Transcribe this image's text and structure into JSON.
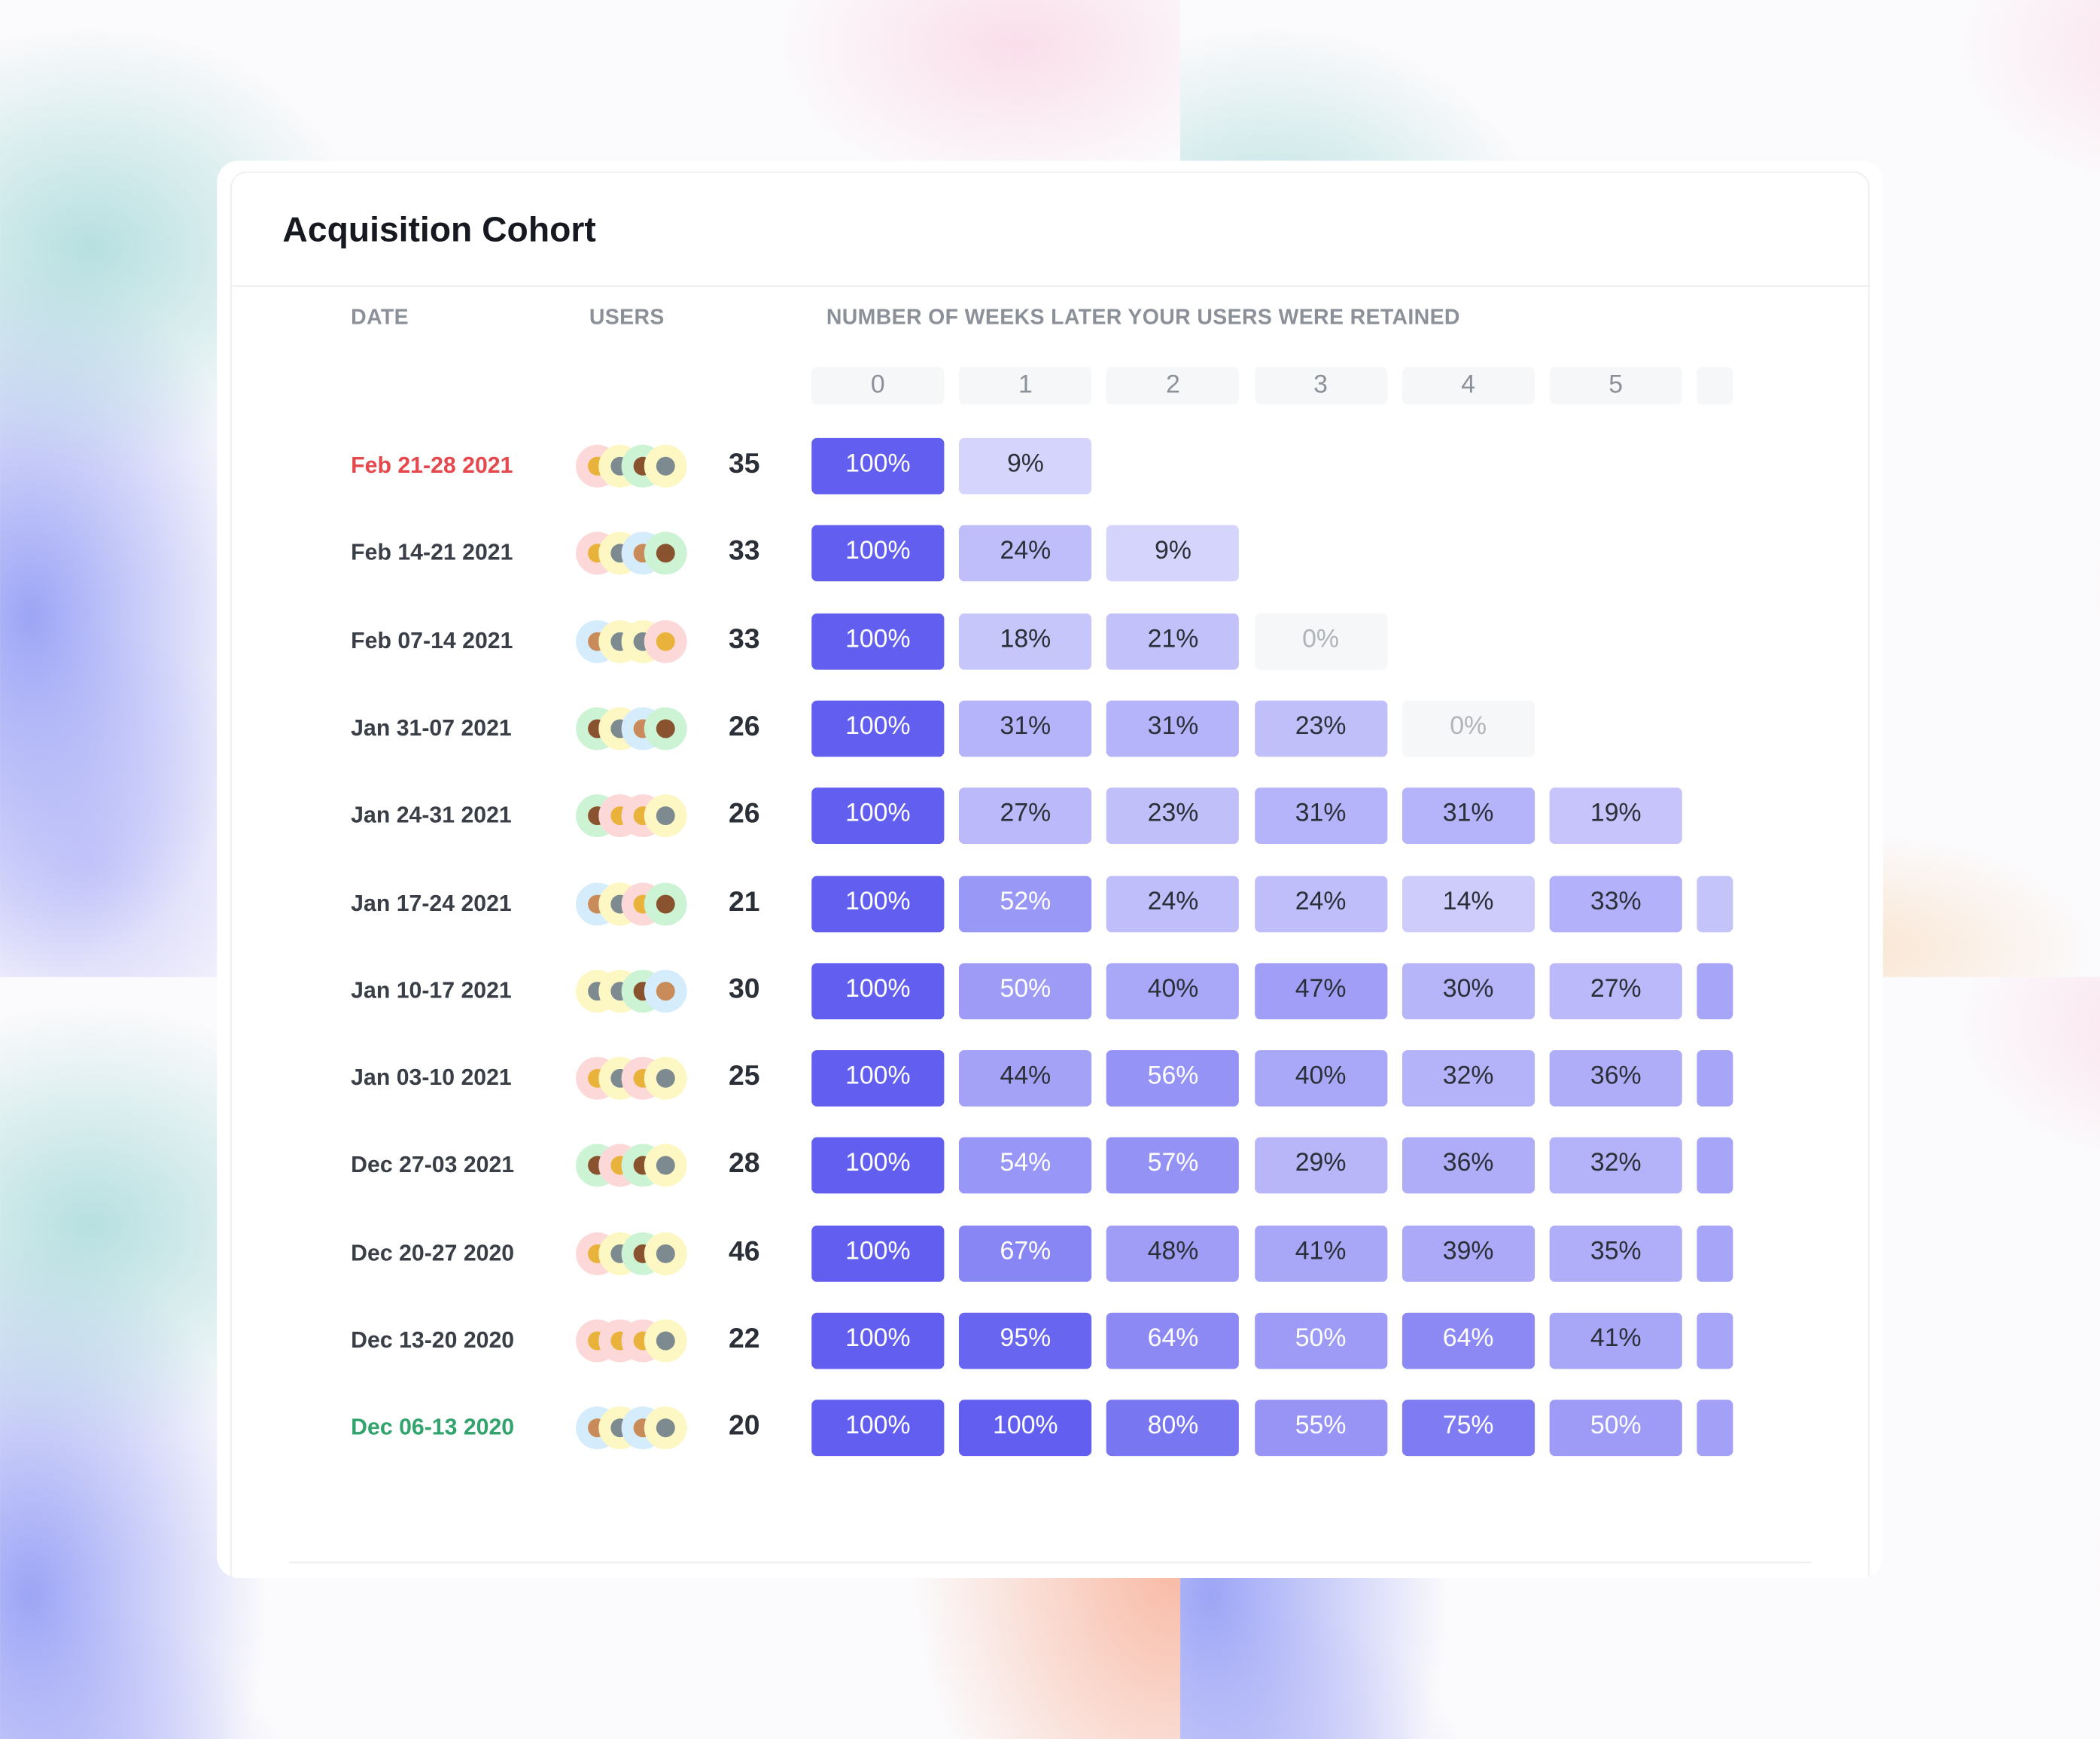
{
  "card": {
    "title": "Acquisition Cohort"
  },
  "headers": {
    "date": "DATE",
    "users": "USERS",
    "weeks": "NUMBER OF WEEKS LATER YOUR USERS WERE RETAINED"
  },
  "week_labels": [
    "0",
    "1",
    "2",
    "3",
    "4",
    "5",
    ""
  ],
  "colors": {
    "accent": "#625ff0",
    "light": "#e6e5fe",
    "zero_bg": "#f6f7f8",
    "zero_text": "#b0b4ba",
    "date_recent": "#e5484d",
    "date_oldest": "#30a46c",
    "date_default": "#3a3f47"
  },
  "avatar_styles": {
    "cat": {
      "bg": "#fdd8d8",
      "fg": "#e9b23a"
    },
    "koala": {
      "bg": "#fdf7c3",
      "fg": "#7d8a90"
    },
    "bear": {
      "bg": "#cdf3d5",
      "fg": "#8a5330"
    },
    "dog": {
      "bg": "#d4ecfb",
      "fg": "#c98b5a"
    }
  },
  "rows": [
    {
      "date": "Feb 21-28 2021",
      "date_tone": "recent",
      "users": "35",
      "avatars": [
        "cat",
        "koala",
        "bear",
        "koala"
      ],
      "values": [
        100,
        9
      ],
      "week6_fill_pct": null
    },
    {
      "date": "Feb 14-21 2021",
      "users": "33",
      "avatars": [
        "cat",
        "koala",
        "dog",
        "bear"
      ],
      "values": [
        100,
        24,
        9
      ],
      "week6_fill_pct": null
    },
    {
      "date": "Feb 07-14 2021",
      "users": "33",
      "avatars": [
        "dog",
        "koala",
        "koala",
        "cat"
      ],
      "values": [
        100,
        18,
        21,
        0
      ],
      "week6_fill_pct": null
    },
    {
      "date": "Jan 31-07 2021",
      "users": "26",
      "avatars": [
        "bear",
        "koala",
        "dog",
        "bear"
      ],
      "values": [
        100,
        31,
        31,
        23,
        0
      ],
      "week6_fill_pct": null
    },
    {
      "date": "Jan 24-31 2021",
      "users": "26",
      "avatars": [
        "bear",
        "cat",
        "cat",
        "koala"
      ],
      "values": [
        100,
        27,
        23,
        31,
        31,
        19
      ],
      "week6_fill_pct": null
    },
    {
      "date": "Jan 17-24 2021",
      "users": "21",
      "avatars": [
        "dog",
        "koala",
        "cat",
        "bear"
      ],
      "values": [
        100,
        52,
        24,
        24,
        14,
        33
      ],
      "week6_fill_pct": 20
    },
    {
      "date": "Jan 10-17 2021",
      "users": "30",
      "avatars": [
        "koala",
        "koala",
        "bear",
        "dog"
      ],
      "values": [
        100,
        50,
        40,
        47,
        30,
        27
      ],
      "week6_fill_pct": 42
    },
    {
      "date": "Jan 03-10 2021",
      "users": "25",
      "avatars": [
        "cat",
        "koala",
        "cat",
        "koala"
      ],
      "values": [
        100,
        44,
        56,
        40,
        32,
        36
      ],
      "week6_fill_pct": 42
    },
    {
      "date": "Dec 27-03 2021",
      "users": "28",
      "avatars": [
        "bear",
        "cat",
        "bear",
        "koala"
      ],
      "values": [
        100,
        54,
        57,
        29,
        36,
        32
      ],
      "week6_fill_pct": 42
    },
    {
      "date": "Dec 20-27 2020",
      "users": "46",
      "avatars": [
        "cat",
        "koala",
        "bear",
        "koala"
      ],
      "values": [
        100,
        67,
        48,
        41,
        39,
        35
      ],
      "week6_fill_pct": 42
    },
    {
      "date": "Dec 13-20 2020",
      "users": "22",
      "avatars": [
        "cat",
        "cat",
        "cat",
        "koala"
      ],
      "values": [
        100,
        95,
        64,
        50,
        64,
        41
      ],
      "week6_fill_pct": 42
    },
    {
      "date": "Dec 06-13 2020",
      "date_tone": "oldest",
      "users": "20",
      "avatars": [
        "dog",
        "koala",
        "dog",
        "koala"
      ],
      "values": [
        100,
        100,
        80,
        55,
        75,
        50
      ],
      "week6_fill_pct": 45
    }
  ]
}
